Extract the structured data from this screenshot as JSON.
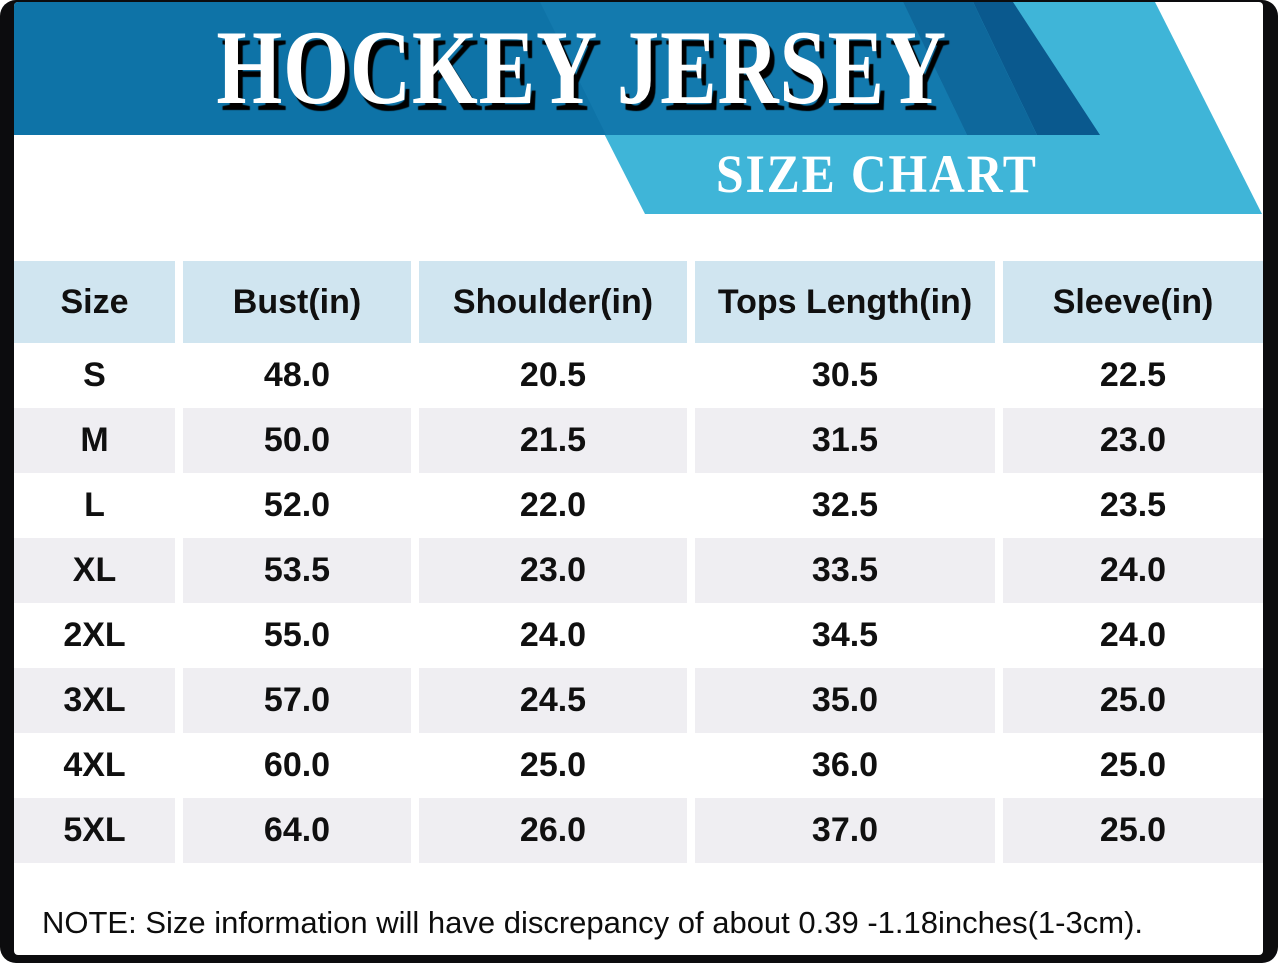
{
  "header": {
    "title": "HOCKEY JERSEY",
    "subtitle": "SIZE CHART"
  },
  "table": {
    "columns": [
      "Size",
      "Bust(in)",
      "Shoulder(in)",
      "Tops Length(in)",
      "Sleeve(in)"
    ],
    "rows": [
      [
        "S",
        "48.0",
        "20.5",
        "30.5",
        "22.5"
      ],
      [
        "M",
        "50.0",
        "21.5",
        "31.5",
        "23.0"
      ],
      [
        "L",
        "52.0",
        "22.0",
        "32.5",
        "23.5"
      ],
      [
        "XL",
        "53.5",
        "23.0",
        "33.5",
        "24.0"
      ],
      [
        "2XL",
        "55.0",
        "24.0",
        "34.5",
        "24.0"
      ],
      [
        "3XL",
        "57.0",
        "24.5",
        "35.0",
        "25.0"
      ],
      [
        "4XL",
        "60.0",
        "25.0",
        "36.0",
        "25.0"
      ],
      [
        "5XL",
        "64.0",
        "26.0",
        "37.0",
        "25.0"
      ]
    ]
  },
  "note": "NOTE: Size information will have discrepancy of about 0.39 -1.18inches(1-3cm).",
  "colors": {
    "banner_blue": "#0e73a7",
    "banner_blue_light": "#137aae",
    "mid_blue": "#0e689c",
    "navy": "#0a598e",
    "cyan": "#3fb5d8",
    "header_cell_blue": "#d0e5f0",
    "alt_row_gray": "#efeef2",
    "frame_black": "#0c0c0e",
    "text_black": "#101010",
    "text_white": "#ffffff"
  },
  "chart_data": {
    "type": "table",
    "title": "HOCKEY JERSEY",
    "subtitle": "SIZE CHART",
    "units": "inches",
    "columns": [
      "Size",
      "Bust(in)",
      "Shoulder(in)",
      "Tops Length(in)",
      "Sleeve(in)"
    ],
    "rows": [
      {
        "size": "S",
        "bust": 48.0,
        "shoulder": 20.5,
        "tops_length": 30.5,
        "sleeve": 22.5
      },
      {
        "size": "M",
        "bust": 50.0,
        "shoulder": 21.5,
        "tops_length": 31.5,
        "sleeve": 23.0
      },
      {
        "size": "L",
        "bust": 52.0,
        "shoulder": 22.0,
        "tops_length": 32.5,
        "sleeve": 23.5
      },
      {
        "size": "XL",
        "bust": 53.5,
        "shoulder": 23.0,
        "tops_length": 33.5,
        "sleeve": 24.0
      },
      {
        "size": "2XL",
        "bust": 55.0,
        "shoulder": 24.0,
        "tops_length": 34.5,
        "sleeve": 24.0
      },
      {
        "size": "3XL",
        "bust": 57.0,
        "shoulder": 24.5,
        "tops_length": 35.0,
        "sleeve": 25.0
      },
      {
        "size": "4XL",
        "bust": 60.0,
        "shoulder": 25.0,
        "tops_length": 36.0,
        "sleeve": 25.0
      },
      {
        "size": "5XL",
        "bust": 64.0,
        "shoulder": 26.0,
        "tops_length": 37.0,
        "sleeve": 25.0
      }
    ],
    "note": "NOTE: Size information will have discrepancy of about 0.39 -1.18inches(1-3cm)."
  }
}
